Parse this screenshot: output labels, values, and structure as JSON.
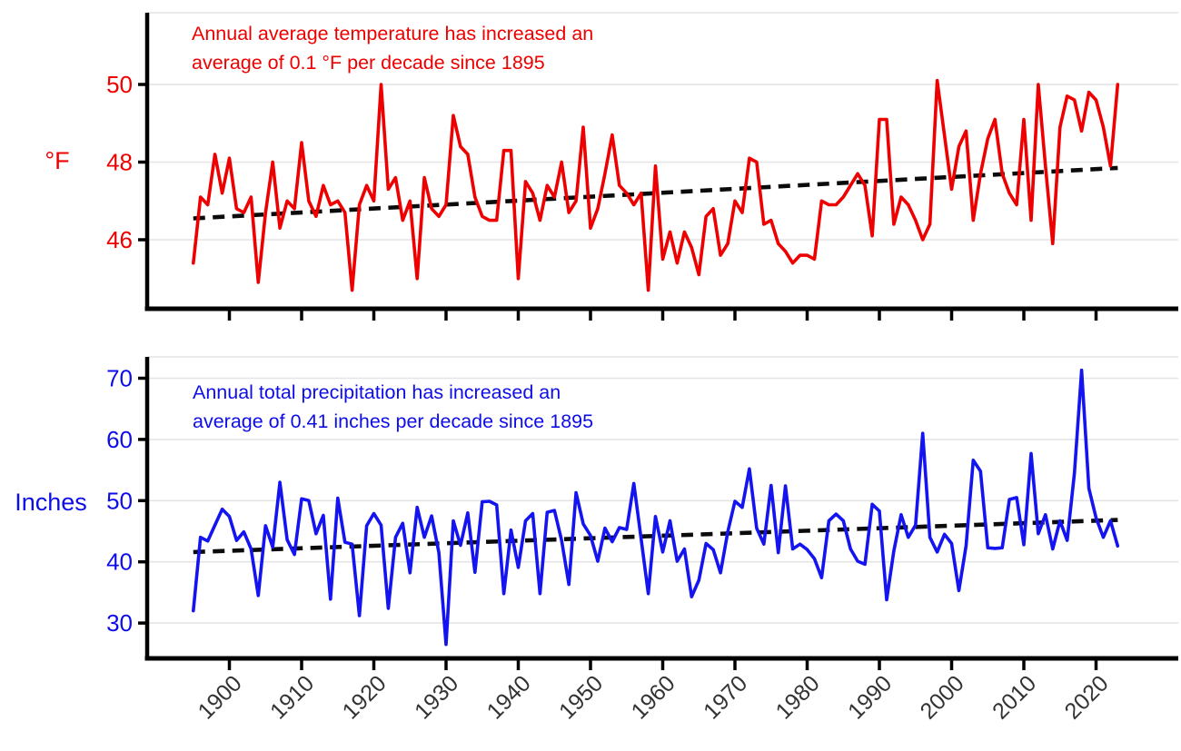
{
  "figure": {
    "background": "#ffffff",
    "x_axis": {
      "tick_labels": [
        "1900",
        "1910",
        "1920",
        "1930",
        "1940",
        "1950",
        "1960",
        "1970",
        "1980",
        "1990",
        "2000",
        "2010",
        "2020"
      ],
      "tick_label_color": "#333333"
    },
    "grid_color": "#e4e4e4",
    "axis_color": "#000000"
  },
  "chart_data": [
    {
      "type": "line",
      "name": "annual-average-temperature",
      "ylabel": "°F",
      "annotation_lines": [
        "Annual average temperature has increased an",
        "average of 0.1 °F per decade since 1895"
      ],
      "line_color": "#ee0000",
      "text_color": "#ee0000",
      "grid": true,
      "legend_position": "none",
      "yticks": [
        46,
        48,
        50
      ],
      "ylim": [
        44.2,
        51.9
      ],
      "xticks": [
        1900,
        1910,
        1920,
        1930,
        1940,
        1950,
        1960,
        1970,
        1980,
        1990,
        2000,
        2010,
        2020
      ],
      "trend": {
        "description": "linear trend, +0.1 °F per decade",
        "style": "dashed",
        "color": "#0b0b0b",
        "start_year": 1895,
        "start_value": 46.55,
        "end_year": 2023,
        "end_value": 47.85
      },
      "years": [
        1895,
        1896,
        1897,
        1898,
        1899,
        1900,
        1901,
        1902,
        1903,
        1904,
        1905,
        1906,
        1907,
        1908,
        1909,
        1910,
        1911,
        1912,
        1913,
        1914,
        1915,
        1916,
        1917,
        1918,
        1919,
        1920,
        1921,
        1922,
        1923,
        1924,
        1925,
        1926,
        1927,
        1928,
        1929,
        1930,
        1931,
        1932,
        1933,
        1934,
        1935,
        1936,
        1937,
        1938,
        1939,
        1940,
        1941,
        1942,
        1943,
        1944,
        1945,
        1946,
        1947,
        1948,
        1949,
        1950,
        1951,
        1952,
        1953,
        1954,
        1955,
        1956,
        1957,
        1958,
        1959,
        1960,
        1961,
        1962,
        1963,
        1964,
        1965,
        1966,
        1967,
        1968,
        1969,
        1970,
        1971,
        1972,
        1973,
        1974,
        1975,
        1976,
        1977,
        1978,
        1979,
        1980,
        1981,
        1982,
        1983,
        1984,
        1985,
        1986,
        1987,
        1988,
        1989,
        1990,
        1991,
        1992,
        1993,
        1994,
        1995,
        1996,
        1997,
        1998,
        1999,
        2000,
        2001,
        2002,
        2003,
        2004,
        2005,
        2006,
        2007,
        2008,
        2009,
        2010,
        2011,
        2012,
        2013,
        2014,
        2015,
        2016,
        2017,
        2018,
        2019,
        2020,
        2021,
        2022,
        2023
      ],
      "values": [
        45.4,
        47.1,
        46.9,
        48.2,
        47.2,
        48.1,
        46.8,
        46.7,
        47.1,
        44.9,
        46.7,
        48.0,
        46.3,
        47.0,
        46.8,
        48.5,
        47.0,
        46.6,
        47.4,
        46.9,
        47.0,
        46.7,
        44.7,
        46.9,
        47.4,
        47.0,
        50.0,
        47.3,
        47.6,
        46.5,
        47.0,
        45.0,
        47.6,
        46.8,
        46.6,
        46.9,
        49.2,
        48.4,
        48.2,
        47.1,
        46.6,
        46.5,
        46.5,
        48.3,
        48.3,
        45.0,
        47.5,
        47.2,
        46.5,
        47.4,
        47.1,
        48.0,
        46.7,
        47.0,
        48.9,
        46.3,
        46.8,
        47.7,
        48.7,
        47.4,
        47.2,
        46.9,
        47.2,
        44.7,
        47.9,
        45.5,
        46.2,
        45.4,
        46.2,
        45.8,
        45.1,
        46.6,
        46.8,
        45.6,
        45.9,
        47.0,
        46.7,
        48.1,
        48.0,
        46.4,
        46.5,
        45.9,
        45.7,
        45.4,
        45.6,
        45.6,
        45.5,
        47.0,
        46.9,
        46.9,
        47.1,
        47.4,
        47.7,
        47.4,
        46.1,
        49.1,
        49.1,
        46.4,
        47.1,
        46.9,
        46.5,
        46.0,
        46.4,
        50.1,
        48.7,
        47.3,
        48.4,
        48.8,
        46.5,
        47.7,
        48.6,
        49.1,
        47.7,
        47.2,
        46.9,
        49.1,
        46.5,
        50.0,
        47.9,
        45.9,
        48.9,
        49.7,
        49.6,
        48.8,
        49.8,
        49.6,
        48.9,
        47.9,
        50.0
      ]
    },
    {
      "type": "line",
      "name": "annual-total-precipitation",
      "ylabel": "Inches",
      "annotation_lines": [
        "Annual total precipitation has increased an",
        "average of 0.41 inches per decade since 1895"
      ],
      "line_color": "#1414f0",
      "text_color": "#0d0de8",
      "grid": true,
      "legend_position": "none",
      "yticks": [
        30,
        40,
        50,
        60,
        70
      ],
      "ylim": [
        24.2,
        73.5
      ],
      "xticks": [
        1900,
        1910,
        1920,
        1930,
        1940,
        1950,
        1960,
        1970,
        1980,
        1990,
        2000,
        2010,
        2020
      ],
      "trend": {
        "description": "linear trend, +0.41 inches per decade",
        "style": "dashed",
        "color": "#0b0b0b",
        "start_year": 1895,
        "start_value": 41.6,
        "end_year": 2023,
        "end_value": 46.85
      },
      "years": [
        1895,
        1896,
        1897,
        1898,
        1899,
        1900,
        1901,
        1902,
        1903,
        1904,
        1905,
        1906,
        1907,
        1908,
        1909,
        1910,
        1911,
        1912,
        1913,
        1914,
        1915,
        1916,
        1917,
        1918,
        1919,
        1920,
        1921,
        1922,
        1923,
        1924,
        1925,
        1926,
        1927,
        1928,
        1929,
        1930,
        1931,
        1932,
        1933,
        1934,
        1935,
        1936,
        1937,
        1938,
        1939,
        1940,
        1941,
        1942,
        1943,
        1944,
        1945,
        1946,
        1947,
        1948,
        1949,
        1950,
        1951,
        1952,
        1953,
        1954,
        1955,
        1956,
        1957,
        1958,
        1959,
        1960,
        1961,
        1962,
        1963,
        1964,
        1965,
        1966,
        1967,
        1968,
        1969,
        1970,
        1971,
        1972,
        1973,
        1974,
        1975,
        1976,
        1977,
        1978,
        1979,
        1980,
        1981,
        1982,
        1983,
        1984,
        1985,
        1986,
        1987,
        1988,
        1989,
        1990,
        1991,
        1992,
        1993,
        1994,
        1995,
        1996,
        1997,
        1998,
        1999,
        2000,
        2001,
        2002,
        2003,
        2004,
        2005,
        2006,
        2007,
        2008,
        2009,
        2010,
        2011,
        2012,
        2013,
        2014,
        2015,
        2016,
        2017,
        2018,
        2019,
        2020,
        2021,
        2022,
        2023
      ],
      "values": [
        32.0,
        44.0,
        43.4,
        46.0,
        48.6,
        47.4,
        43.5,
        44.9,
        42.1,
        34.5,
        45.9,
        42.4,
        53.0,
        43.6,
        41.2,
        50.3,
        50.0,
        44.6,
        47.6,
        33.9,
        50.4,
        43.2,
        42.9,
        31.2,
        45.9,
        47.9,
        46.0,
        32.4,
        44.0,
        46.3,
        38.2,
        48.9,
        44.0,
        47.5,
        41.5,
        26.5,
        46.7,
        42.7,
        48.0,
        38.3,
        49.8,
        49.9,
        49.3,
        34.8,
        45.2,
        39.1,
        46.7,
        47.9,
        34.8,
        48.1,
        48.4,
        43.5,
        36.3,
        51.3,
        46.2,
        44.3,
        40.1,
        45.5,
        43.3,
        45.6,
        45.3,
        52.8,
        43.8,
        34.8,
        47.4,
        41.6,
        46.7,
        40.1,
        42.1,
        34.3,
        37.0,
        43.0,
        42.0,
        38.2,
        44.9,
        49.9,
        48.9,
        55.2,
        45.5,
        42.9,
        52.5,
        41.5,
        52.4,
        42.1,
        42.9,
        42.0,
        40.5,
        37.4,
        46.7,
        47.8,
        46.7,
        42.1,
        40.1,
        39.6,
        49.4,
        48.3,
        33.8,
        41.8,
        47.7,
        44.0,
        46.0,
        61.0,
        44.0,
        41.6,
        44.5,
        43.0,
        35.3,
        42.6,
        56.6,
        54.8,
        42.3,
        42.2,
        42.3,
        50.2,
        50.5,
        42.8,
        57.7,
        44.6,
        47.7,
        42.1,
        46.7,
        43.5,
        54.5,
        71.3,
        52.0,
        47.2,
        44.0,
        46.7,
        42.6
      ]
    }
  ]
}
